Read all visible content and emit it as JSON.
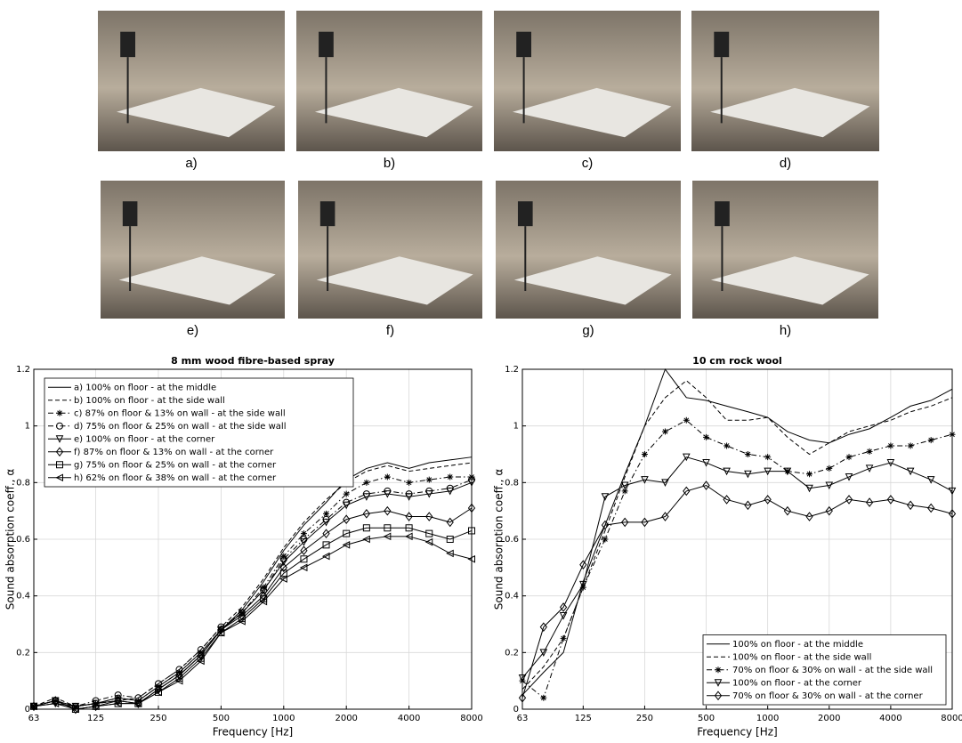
{
  "photos": {
    "labels": [
      "a)",
      "b)",
      "c)",
      "d)",
      "e)",
      "f)",
      "g)",
      "h)"
    ]
  },
  "chart_data": [
    {
      "type": "line",
      "title": "8 mm wood fibre-based spray",
      "x_label": "Frequency [Hz]",
      "y_label": "Sound absorption coeff., α",
      "log_x": true,
      "grid": true,
      "legend": "upper left",
      "xlim": [
        63,
        8000
      ],
      "xticks": [
        63,
        125,
        250,
        500,
        1000,
        2000,
        4000,
        8000
      ],
      "ylim": [
        0,
        1.2
      ],
      "yticks": [
        0,
        0.2,
        0.4,
        0.6,
        0.8,
        1,
        1.2
      ],
      "x": [
        63,
        80,
        100,
        125,
        160,
        200,
        250,
        315,
        400,
        500,
        630,
        800,
        1000,
        1250,
        1600,
        2000,
        2500,
        3150,
        4000,
        5000,
        6300,
        8000
      ],
      "series": [
        {
          "name": "a) 100% on floor - at the middle",
          "color": "#000000",
          "style": "solid",
          "marker": "none",
          "values": [
            0.01,
            0.03,
            0.01,
            0.02,
            0.04,
            0.03,
            0.08,
            0.13,
            0.2,
            0.28,
            0.35,
            0.45,
            0.56,
            0.65,
            0.73,
            0.81,
            0.85,
            0.87,
            0.85,
            0.87,
            0.88,
            0.89
          ]
        },
        {
          "name": "b) 100% on floor - at the side wall",
          "color": "#000000",
          "style": "dashed",
          "marker": "none",
          "values": [
            0.01,
            0.04,
            0.01,
            0.02,
            0.03,
            0.04,
            0.09,
            0.14,
            0.21,
            0.29,
            0.36,
            0.46,
            0.57,
            0.66,
            0.74,
            0.8,
            0.84,
            0.86,
            0.84,
            0.85,
            0.86,
            0.87
          ]
        },
        {
          "name": "c) 87% on floor & 13% on wall - at the side wall",
          "color": "#000000",
          "style": "dashdot",
          "marker": "asterisk",
          "values": [
            0.01,
            0.03,
            0.01,
            0.02,
            0.04,
            0.03,
            0.08,
            0.13,
            0.2,
            0.28,
            0.34,
            0.43,
            0.54,
            0.62,
            0.69,
            0.76,
            0.8,
            0.82,
            0.8,
            0.81,
            0.82,
            0.82
          ]
        },
        {
          "name": "d) 75% on floor & 25% on wall - at the side wall",
          "color": "#000000",
          "style": "dashdot",
          "marker": "circle",
          "values": [
            0.01,
            0.03,
            0.01,
            0.03,
            0.05,
            0.04,
            0.09,
            0.14,
            0.21,
            0.29,
            0.34,
            0.42,
            0.53,
            0.6,
            0.67,
            0.73,
            0.76,
            0.77,
            0.76,
            0.77,
            0.78,
            0.81
          ]
        },
        {
          "name": "e) 100% on floor - at the corner",
          "color": "#000000",
          "style": "solid",
          "marker": "triangle-down",
          "values": [
            0.01,
            0.02,
            0.01,
            0.02,
            0.03,
            0.02,
            0.07,
            0.12,
            0.19,
            0.28,
            0.34,
            0.42,
            0.52,
            0.59,
            0.66,
            0.72,
            0.75,
            0.76,
            0.75,
            0.76,
            0.77,
            0.8
          ]
        },
        {
          "name": "f) 87% on floor & 13% on wall - at the corner",
          "color": "#000000",
          "style": "solid",
          "marker": "diamond",
          "values": [
            0.01,
            0.03,
            0,
            0.01,
            0.03,
            0.02,
            0.07,
            0.12,
            0.19,
            0.28,
            0.33,
            0.4,
            0.5,
            0.56,
            0.62,
            0.67,
            0.69,
            0.7,
            0.68,
            0.68,
            0.66,
            0.71
          ]
        },
        {
          "name": "g) 75% on floor & 25% on wall - at the corner",
          "color": "#000000",
          "style": "solid",
          "marker": "square",
          "values": [
            0.01,
            0.03,
            0,
            0.01,
            0.02,
            0.02,
            0.06,
            0.11,
            0.18,
            0.27,
            0.32,
            0.39,
            0.48,
            0.53,
            0.58,
            0.62,
            0.64,
            0.64,
            0.64,
            0.62,
            0.6,
            0.63
          ]
        },
        {
          "name": "h) 62% on floor & 38% on wall - at the corner",
          "color": "#000000",
          "style": "solid",
          "marker": "triangle-left",
          "values": [
            0.01,
            0.02,
            0,
            0.01,
            0.02,
            0.02,
            0.06,
            0.1,
            0.17,
            0.27,
            0.31,
            0.38,
            0.46,
            0.5,
            0.54,
            0.58,
            0.6,
            0.61,
            0.61,
            0.59,
            0.55,
            0.53
          ]
        }
      ]
    },
    {
      "type": "line",
      "title": "10 cm rock wool",
      "x_label": "Frequency [Hz]",
      "y_label": "Sound absorption coeff., α",
      "log_x": true,
      "grid": true,
      "legend": "lower right",
      "xlim": [
        63,
        8000
      ],
      "xticks": [
        63,
        125,
        250,
        500,
        1000,
        2000,
        4000,
        8000
      ],
      "ylim": [
        0,
        1.2
      ],
      "yticks": [
        0,
        0.2,
        0.4,
        0.6,
        0.8,
        1,
        1.2
      ],
      "x": [
        63,
        80,
        100,
        125,
        160,
        200,
        250,
        315,
        400,
        500,
        630,
        800,
        1000,
        1250,
        1600,
        2000,
        2500,
        3150,
        4000,
        5000,
        6300,
        8000
      ],
      "series": [
        {
          "name": "100% on floor - at the middle",
          "color": "#000000",
          "style": "solid",
          "marker": "none",
          "values": [
            0.05,
            0.13,
            0.2,
            0.45,
            0.65,
            0.83,
            1.0,
            1.2,
            1.1,
            1.09,
            1.07,
            1.05,
            1.03,
            0.98,
            0.95,
            0.94,
            0.97,
            0.99,
            1.03,
            1.07,
            1.09,
            1.13
          ]
        },
        {
          "name": "100% on floor - at the side wall",
          "color": "#000000",
          "style": "dashed",
          "marker": "none",
          "values": [
            0.07,
            0.15,
            0.25,
            0.43,
            0.63,
            0.82,
            1.0,
            1.1,
            1.16,
            1.1,
            1.02,
            1.02,
            1.03,
            0.96,
            0.9,
            0.94,
            0.98,
            1.0,
            1.02,
            1.05,
            1.07,
            1.1
          ]
        },
        {
          "name": "70% on floor & 30% on wall - at the side wall",
          "color": "#000000",
          "style": "dashdot",
          "marker": "asterisk",
          "values": [
            0.1,
            0.04,
            0.25,
            0.43,
            0.6,
            0.77,
            0.9,
            0.98,
            1.02,
            0.96,
            0.93,
            0.9,
            0.89,
            0.84,
            0.83,
            0.85,
            0.89,
            0.91,
            0.93,
            0.93,
            0.95,
            0.97
          ]
        },
        {
          "name": "100% on floor - at the corner",
          "color": "#000000",
          "style": "solid",
          "marker": "triangle-down",
          "values": [
            0.11,
            0.2,
            0.33,
            0.44,
            0.75,
            0.79,
            0.81,
            0.8,
            0.89,
            0.87,
            0.84,
            0.83,
            0.84,
            0.84,
            0.78,
            0.79,
            0.82,
            0.85,
            0.87,
            0.84,
            0.81,
            0.77
          ]
        },
        {
          "name": "70% on floor & 30% on wall - at the corner",
          "color": "#000000",
          "style": "solid",
          "marker": "diamond",
          "values": [
            0.04,
            0.29,
            0.36,
            0.51,
            0.65,
            0.66,
            0.66,
            0.68,
            0.77,
            0.79,
            0.74,
            0.72,
            0.74,
            0.7,
            0.68,
            0.7,
            0.74,
            0.73,
            0.74,
            0.72,
            0.71,
            0.69
          ]
        }
      ]
    }
  ]
}
